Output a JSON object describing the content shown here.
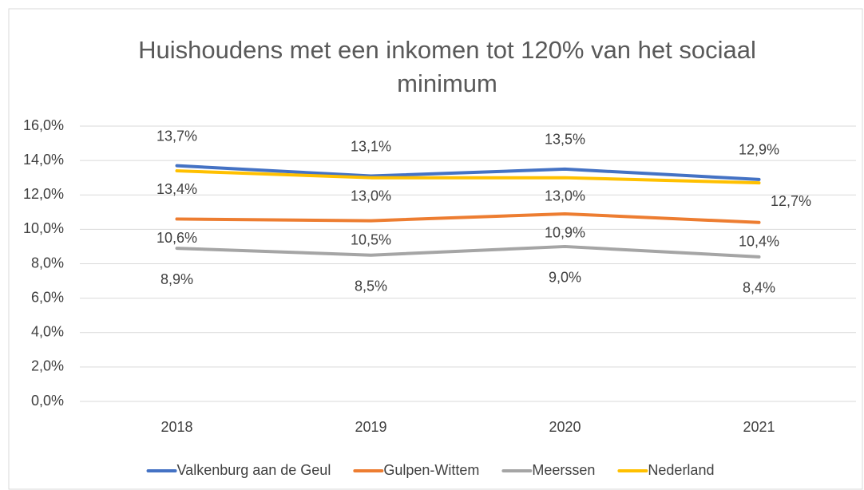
{
  "chart_data": {
    "type": "line",
    "title": "Huishoudens met een inkomen tot 120% van het sociaal minimum",
    "categories": [
      "2018",
      "2019",
      "2020",
      "2021"
    ],
    "series": [
      {
        "name": "Valkenburg aan de Geul",
        "color": "#4472c4",
        "values": [
          13.7,
          13.1,
          13.5,
          12.9
        ],
        "value_labels": [
          "13,7%",
          "13,1%",
          "13,5%",
          "12,9%"
        ]
      },
      {
        "name": "Gulpen-Wittem",
        "color": "#ed7d31",
        "values": [
          10.6,
          10.5,
          10.9,
          10.4
        ],
        "value_labels": [
          "10,6%",
          "10,5%",
          "10,9%",
          "10,4%"
        ]
      },
      {
        "name": "Meerssen",
        "color": "#a5a5a5",
        "values": [
          8.9,
          8.5,
          9.0,
          8.4
        ],
        "value_labels": [
          "8,9%",
          "8,5%",
          "9,0%",
          "8,4%"
        ]
      },
      {
        "name": "Nederland",
        "color": "#ffc000",
        "values": [
          13.4,
          13.0,
          13.0,
          12.7
        ],
        "value_labels": [
          "13,4%",
          "13,0%",
          "13,0%",
          "12,7%"
        ]
      }
    ],
    "ylim": [
      0,
      16
    ],
    "yticks": [
      {
        "value": 0,
        "label": "0,0%"
      },
      {
        "value": 2,
        "label": "2,0%"
      },
      {
        "value": 4,
        "label": "4,0%"
      },
      {
        "value": 6,
        "label": "6,0%"
      },
      {
        "value": 8,
        "label": "8,0%"
      },
      {
        "value": 10,
        "label": "10,0%"
      },
      {
        "value": 12,
        "label": "12,0%"
      },
      {
        "value": 14,
        "label": "14,0%"
      },
      {
        "value": 16,
        "label": "16,0%"
      }
    ],
    "grid": true,
    "legend": "bottom"
  }
}
